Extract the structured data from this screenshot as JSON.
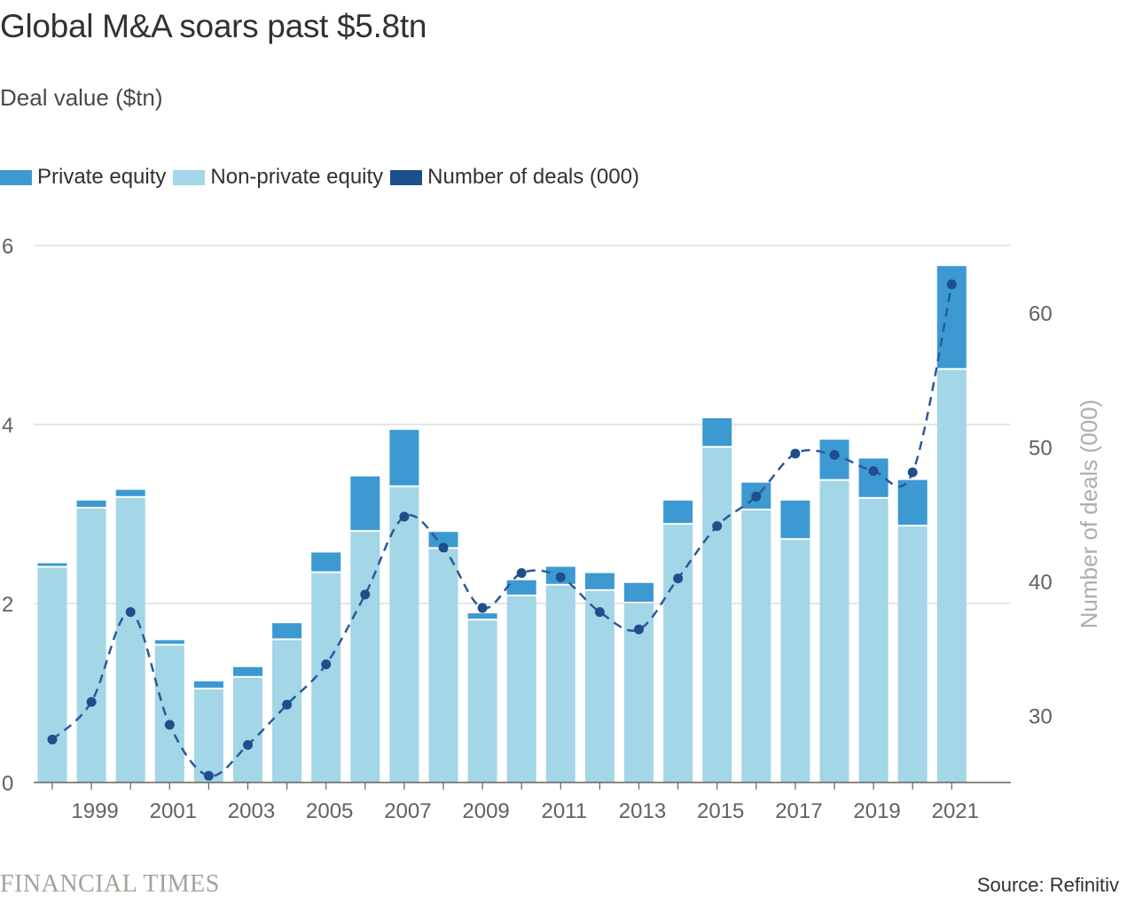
{
  "colors": {
    "private_equity": "#3d99d1",
    "non_private_equity": "#a3d6e6",
    "deals": "#1f4e8c",
    "deals_line": "#2a5a9a",
    "grid": "#cccccc",
    "axis": "#66605c",
    "right_axis_label": "#b3aca6"
  },
  "title": "Global M&A soars past $5.8tn",
  "subtitle": "Deal value ($tn)",
  "legend": {
    "private_equity": "Private equity",
    "non_private_equity": "Non-private equity",
    "deals": "Number of deals (000)"
  },
  "footer": {
    "brand": "FINANCIAL TIMES",
    "source": "Source: Refinitiv"
  },
  "chart_data": {
    "type": "bar",
    "stacked": true,
    "title": "Global M&A soars past $5.8tn",
    "ylabel": "Deal value ($tn)",
    "y2label": "Number of deals (000)",
    "ylim": [
      0,
      6
    ],
    "y2lim": [
      25,
      65
    ],
    "yticks": [
      0,
      2,
      4,
      6
    ],
    "y2ticks": [
      30,
      40,
      50,
      60
    ],
    "xtick_labels": [
      "1999",
      "2001",
      "2003",
      "2005",
      "2007",
      "2009",
      "2011",
      "2013",
      "2015",
      "2017",
      "2019",
      "2021"
    ],
    "categories": [
      1998,
      1999,
      2000,
      2001,
      2002,
      2003,
      2004,
      2005,
      2006,
      2007,
      2008,
      2009,
      2010,
      2011,
      2012,
      2013,
      2014,
      2015,
      2016,
      2017,
      2018,
      2019,
      2020,
      2021
    ],
    "series": [
      {
        "name": "Non-private equity",
        "values": [
          2.4,
          3.06,
          3.18,
          1.53,
          1.04,
          1.17,
          1.59,
          2.34,
          2.8,
          3.3,
          2.61,
          1.81,
          2.08,
          2.2,
          2.14,
          2.0,
          2.88,
          3.74,
          3.04,
          2.71,
          3.37,
          3.17,
          2.86,
          4.61
        ]
      },
      {
        "name": "Private equity",
        "values": [
          0.05,
          0.09,
          0.09,
          0.06,
          0.09,
          0.12,
          0.19,
          0.23,
          0.62,
          0.64,
          0.19,
          0.08,
          0.18,
          0.21,
          0.2,
          0.23,
          0.27,
          0.33,
          0.31,
          0.44,
          0.46,
          0.45,
          0.52,
          1.16
        ]
      },
      {
        "name": "Number of deals (000)",
        "axis": "right",
        "kind": "line",
        "values": [
          28.2,
          31.0,
          37.7,
          29.3,
          25.5,
          27.8,
          30.8,
          33.8,
          39.0,
          44.8,
          42.5,
          38.0,
          40.6,
          40.3,
          37.7,
          36.4,
          40.2,
          44.1,
          46.3,
          49.5,
          49.4,
          48.2,
          48.1,
          62.1
        ]
      }
    ],
    "grid": true,
    "legend_position": "top-left",
    "source": "Source: Refinitiv"
  }
}
